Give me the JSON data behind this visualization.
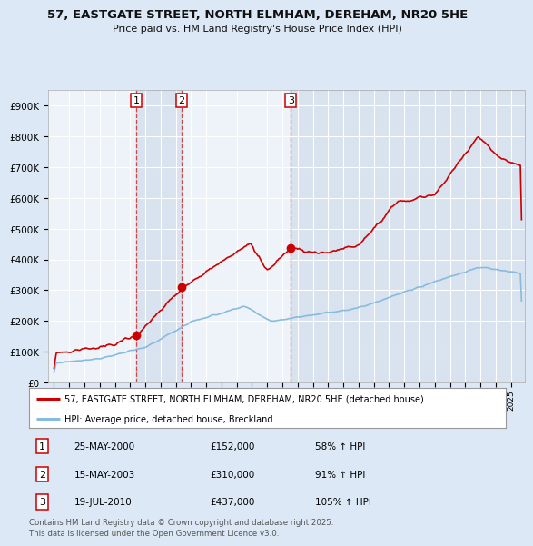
{
  "title": "57, EASTGATE STREET, NORTH ELMHAM, DEREHAM, NR20 5HE",
  "subtitle": "Price paid vs. HM Land Registry's House Price Index (HPI)",
  "legend_property": "57, EASTGATE STREET, NORTH ELMHAM, DEREHAM, NR20 5HE (detached house)",
  "legend_hpi": "HPI: Average price, detached house, Breckland",
  "property_color": "#cc0000",
  "hpi_color": "#88bbdd",
  "background_color": "#dce8f5",
  "plot_bg": "#eef3fa",
  "grid_color": "#ffffff",
  "ylim": [
    0,
    950000
  ],
  "yticks": [
    0,
    100000,
    200000,
    300000,
    400000,
    500000,
    600000,
    700000,
    800000,
    900000
  ],
  "ytick_labels": [
    "£0",
    "£100K",
    "£200K",
    "£300K",
    "£400K",
    "£500K",
    "£600K",
    "£700K",
    "£800K",
    "£900K"
  ],
  "vline_dates": [
    2000.39,
    2003.37,
    2010.55
  ],
  "sale_prices": [
    152000,
    310000,
    437000
  ],
  "table_data": [
    [
      "1",
      "25-MAY-2000",
      "£152,000",
      "58% ↑ HPI"
    ],
    [
      "2",
      "15-MAY-2003",
      "£310,000",
      "91% ↑ HPI"
    ],
    [
      "3",
      "19-JUL-2010",
      "£437,000",
      "105% ↑ HPI"
    ]
  ],
  "footnote": "Contains HM Land Registry data © Crown copyright and database right 2025.\nThis data is licensed under the Open Government Licence v3.0.",
  "xstart": 1994.6,
  "xend": 2025.9
}
